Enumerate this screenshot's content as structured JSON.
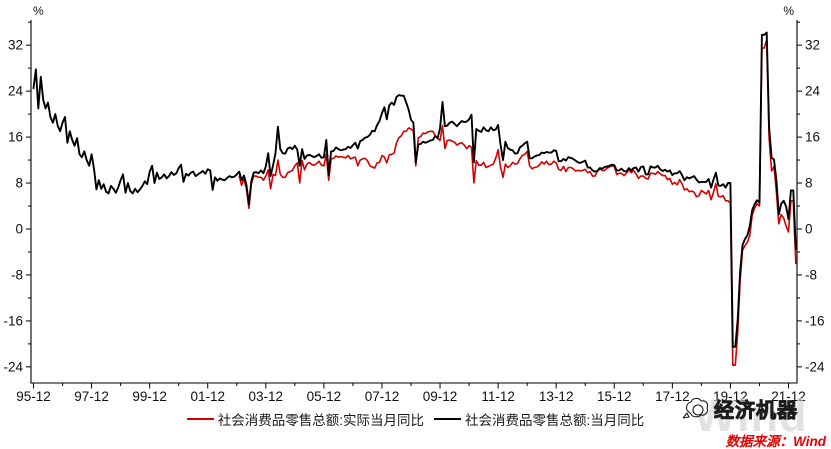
{
  "chart_data": {
    "type": "line",
    "title": "",
    "y_axis": {
      "unit": "%",
      "major_ticks": [
        32,
        24,
        16,
        8,
        0,
        -8,
        -16,
        -24
      ],
      "minor_ticks": [
        36,
        28,
        20,
        12,
        4,
        -4,
        -12,
        -20
      ],
      "range": [
        -26.8,
        36.4
      ],
      "mirrored_right": true
    },
    "x_axis": {
      "start": "1995-12",
      "end": "2022-03",
      "tick_labels": [
        "95-12",
        "97-12",
        "99-12",
        "01-12",
        "03-12",
        "05-12",
        "07-12",
        "09-12",
        "11-12",
        "13-12",
        "15-12",
        "17-12",
        "19-12",
        "21-12"
      ],
      "months_per_major_tick": 24
    },
    "grid": false,
    "legend_position": "bottom-center",
    "series": [
      {
        "name": "社会消费品零售总额:实际当月同比",
        "color": "#d40000",
        "start": "2003-01",
        "values": [
          9.2,
          7.6,
          8.8,
          7.0,
          3.6,
          7.8,
          9.2,
          9.2,
          9.0,
          9.0,
          8.5,
          9.2,
          10.3,
          7.0,
          9.5,
          9.3,
          12.0,
          9.5,
          9.0,
          9.0,
          9.8,
          10.0,
          10.2,
          11.0,
          11.5,
          8.0,
          11.9,
          10.3,
          11.3,
          11.6,
          11.2,
          11.1,
          11.4,
          11.8,
          11.1,
          11.0,
          13.0,
          8.5,
          12.2,
          12.3,
          12.7,
          12.5,
          12.6,
          12.5,
          12.4,
          12.8,
          12.2,
          12.4,
          12.5,
          11.0,
          12.0,
          12.2,
          12.3,
          11.9,
          11.0,
          10.8,
          10.6,
          11.5,
          11.6,
          12.8,
          12.5,
          11.5,
          12.9,
          13.0,
          13.2,
          15.0,
          15.9,
          16.2,
          17.0,
          17.0,
          17.6,
          17.4,
          17.0,
          11.0,
          15.9,
          16.1,
          16.7,
          16.6,
          16.9,
          17.0,
          17.0,
          16.3,
          15.8,
          15.4,
          18.0,
          14.0,
          15.4,
          15.5,
          15.3,
          15.1,
          14.6,
          14.9,
          15.0,
          14.6,
          14.0,
          14.5,
          14.2,
          8.0,
          11.9,
          11.1,
          11.1,
          11.6,
          10.7,
          10.9,
          11.1,
          11.3,
          12.3,
          13.8,
          10.8,
          9.0,
          11.3,
          10.7,
          11.0,
          11.6,
          11.3,
          11.4,
          12.2,
          12.8,
          13.0,
          13.5,
          11.0,
          10.5,
          10.7,
          10.8,
          11.1,
          11.7,
          11.3,
          11.8,
          11.2,
          11.3,
          11.8,
          11.5,
          10.4,
          10.2,
          10.9,
          10.0,
          10.7,
          10.7,
          10.5,
          10.1,
          10.2,
          10.1,
          10.2,
          10.4,
          9.8,
          10.0,
          9.2,
          9.2,
          10.0,
          10.5,
          10.2,
          10.2,
          10.6,
          10.8,
          11.0,
          10.9,
          9.5,
          9.7,
          9.7,
          9.3,
          9.7,
          10.3,
          9.8,
          10.2,
          9.6,
          8.8,
          9.2,
          9.2,
          8.8,
          8.7,
          9.7,
          9.7,
          9.5,
          10.0,
          9.6,
          9.3,
          9.3,
          8.6,
          8.8,
          7.8,
          8.1,
          7.7,
          8.6,
          7.9,
          6.8,
          7.0,
          6.5,
          6.6,
          6.4,
          5.6,
          5.8,
          6.7,
          6.4,
          6.1,
          6.7,
          5.1,
          6.4,
          7.9,
          5.7,
          5.6,
          5.8,
          4.9,
          4.9,
          4.5,
          -23.7,
          -23.7,
          -18.1,
          -9.1,
          -3.7,
          -2.9,
          -2.3,
          -1.1,
          2.4,
          3.6,
          4.4,
          4.0,
          31.5,
          31.5,
          33.0,
          15.8,
          10.1,
          10.9,
          6.4,
          0.9,
          2.5,
          1.9,
          0.5,
          -0.5,
          4.9,
          4.9,
          -6.0
        ]
      },
      {
        "name": "社会消费品零售总额:当月同比",
        "color": "#000000",
        "start": "1995-12",
        "values": [
          24.5,
          27.8,
          21.0,
          26.5,
          22.5,
          21.0,
          22.0,
          19.5,
          18.5,
          20.0,
          18.0,
          17.0,
          18.5,
          19.5,
          15.0,
          17.0,
          15.5,
          14.5,
          15.8,
          13.0,
          12.5,
          13.5,
          12.0,
          11.0,
          13.0,
          10.5,
          6.9,
          8.5,
          7.0,
          7.8,
          6.5,
          6.2,
          7.5,
          7.0,
          6.3,
          7.2,
          8.5,
          9.5,
          6.3,
          8.0,
          6.6,
          6.2,
          7.0,
          6.4,
          6.9,
          7.5,
          8.3,
          7.8,
          10.0,
          11.0,
          8.0,
          9.8,
          8.7,
          9.0,
          9.5,
          8.8,
          9.2,
          9.9,
          9.4,
          9.7,
          10.6,
          11.2,
          8.2,
          9.6,
          9.3,
          9.8,
          10.0,
          9.2,
          9.5,
          9.8,
          10.1,
          9.6,
          10.4,
          10.2,
          6.8,
          9.0,
          8.4,
          8.8,
          8.6,
          8.5,
          8.9,
          9.2,
          9.0,
          9.1,
          9.5,
          10.0,
          8.5,
          9.3,
          7.7,
          4.3,
          8.3,
          9.8,
          9.9,
          9.7,
          10.2,
          9.7,
          10.9,
          13.2,
          9.2,
          11.1,
          13.2,
          17.8,
          13.9,
          13.2,
          13.1,
          14.0,
          14.2,
          13.9,
          14.5,
          13.8,
          11.0,
          13.9,
          12.2,
          12.8,
          12.9,
          12.7,
          12.5,
          12.7,
          13.0,
          12.4,
          12.5,
          15.5,
          9.4,
          13.5,
          13.6,
          14.2,
          13.9,
          13.7,
          13.8,
          13.9,
          14.3,
          14.1,
          14.6,
          15.0,
          14.0,
          15.3,
          15.5,
          15.9,
          16.0,
          16.4,
          17.1,
          17.0,
          18.1,
          18.8,
          20.2,
          21.2,
          19.1,
          21.5,
          22.0,
          21.6,
          23.0,
          23.3,
          23.2,
          23.2,
          22.0,
          20.8,
          19.0,
          18.5,
          11.6,
          14.7,
          14.8,
          15.2,
          15.0,
          15.2,
          15.4,
          15.5,
          16.2,
          15.8,
          17.5,
          22.1,
          17.9,
          18.0,
          18.5,
          18.7,
          18.3,
          17.9,
          18.4,
          18.8,
          18.6,
          18.7,
          19.1,
          19.9,
          11.6,
          17.4,
          17.1,
          16.9,
          17.7,
          17.2,
          17.0,
          17.7,
          17.2,
          17.3,
          18.1,
          14.7,
          12.0,
          15.2,
          14.1,
          13.8,
          13.7,
          13.1,
          13.2,
          14.2,
          14.5,
          14.9,
          15.2,
          12.3,
          12.3,
          12.6,
          12.8,
          12.9,
          13.3,
          13.2,
          13.4,
          13.3,
          13.3,
          13.7,
          13.6,
          11.8,
          11.8,
          12.2,
          11.9,
          12.5,
          12.4,
          12.2,
          11.9,
          11.6,
          11.5,
          11.7,
          11.9,
          10.7,
          10.7,
          10.2,
          10.0,
          10.1,
          10.6,
          10.5,
          10.8,
          10.9,
          11.0,
          11.2,
          11.1,
          10.2,
          10.2,
          10.5,
          10.1,
          10.0,
          10.6,
          10.2,
          10.6,
          10.7,
          10.0,
          10.8,
          10.9,
          9.5,
          9.5,
          10.9,
          10.7,
          10.7,
          11.0,
          10.4,
          10.1,
          10.3,
          10.0,
          10.2,
          9.4,
          9.7,
          9.7,
          10.1,
          9.4,
          8.5,
          9.0,
          8.8,
          9.0,
          9.2,
          8.6,
          8.1,
          8.2,
          8.2,
          8.2,
          8.7,
          7.2,
          8.6,
          9.8,
          7.6,
          7.5,
          7.8,
          7.2,
          8.0,
          8.0,
          -20.5,
          -20.5,
          -15.8,
          -7.5,
          -2.8,
          -1.8,
          -1.1,
          0.5,
          3.3,
          4.3,
          5.0,
          4.6,
          33.8,
          33.8,
          34.2,
          17.7,
          12.4,
          12.1,
          8.5,
          2.5,
          4.4,
          4.9,
          3.9,
          1.7,
          6.7,
          6.7,
          -3.5
        ]
      }
    ]
  },
  "watermark": {
    "background_text": "Wind",
    "logo_text": "经济机器",
    "source_label": "数据来源：Wind",
    "source_color": "#e60000"
  }
}
